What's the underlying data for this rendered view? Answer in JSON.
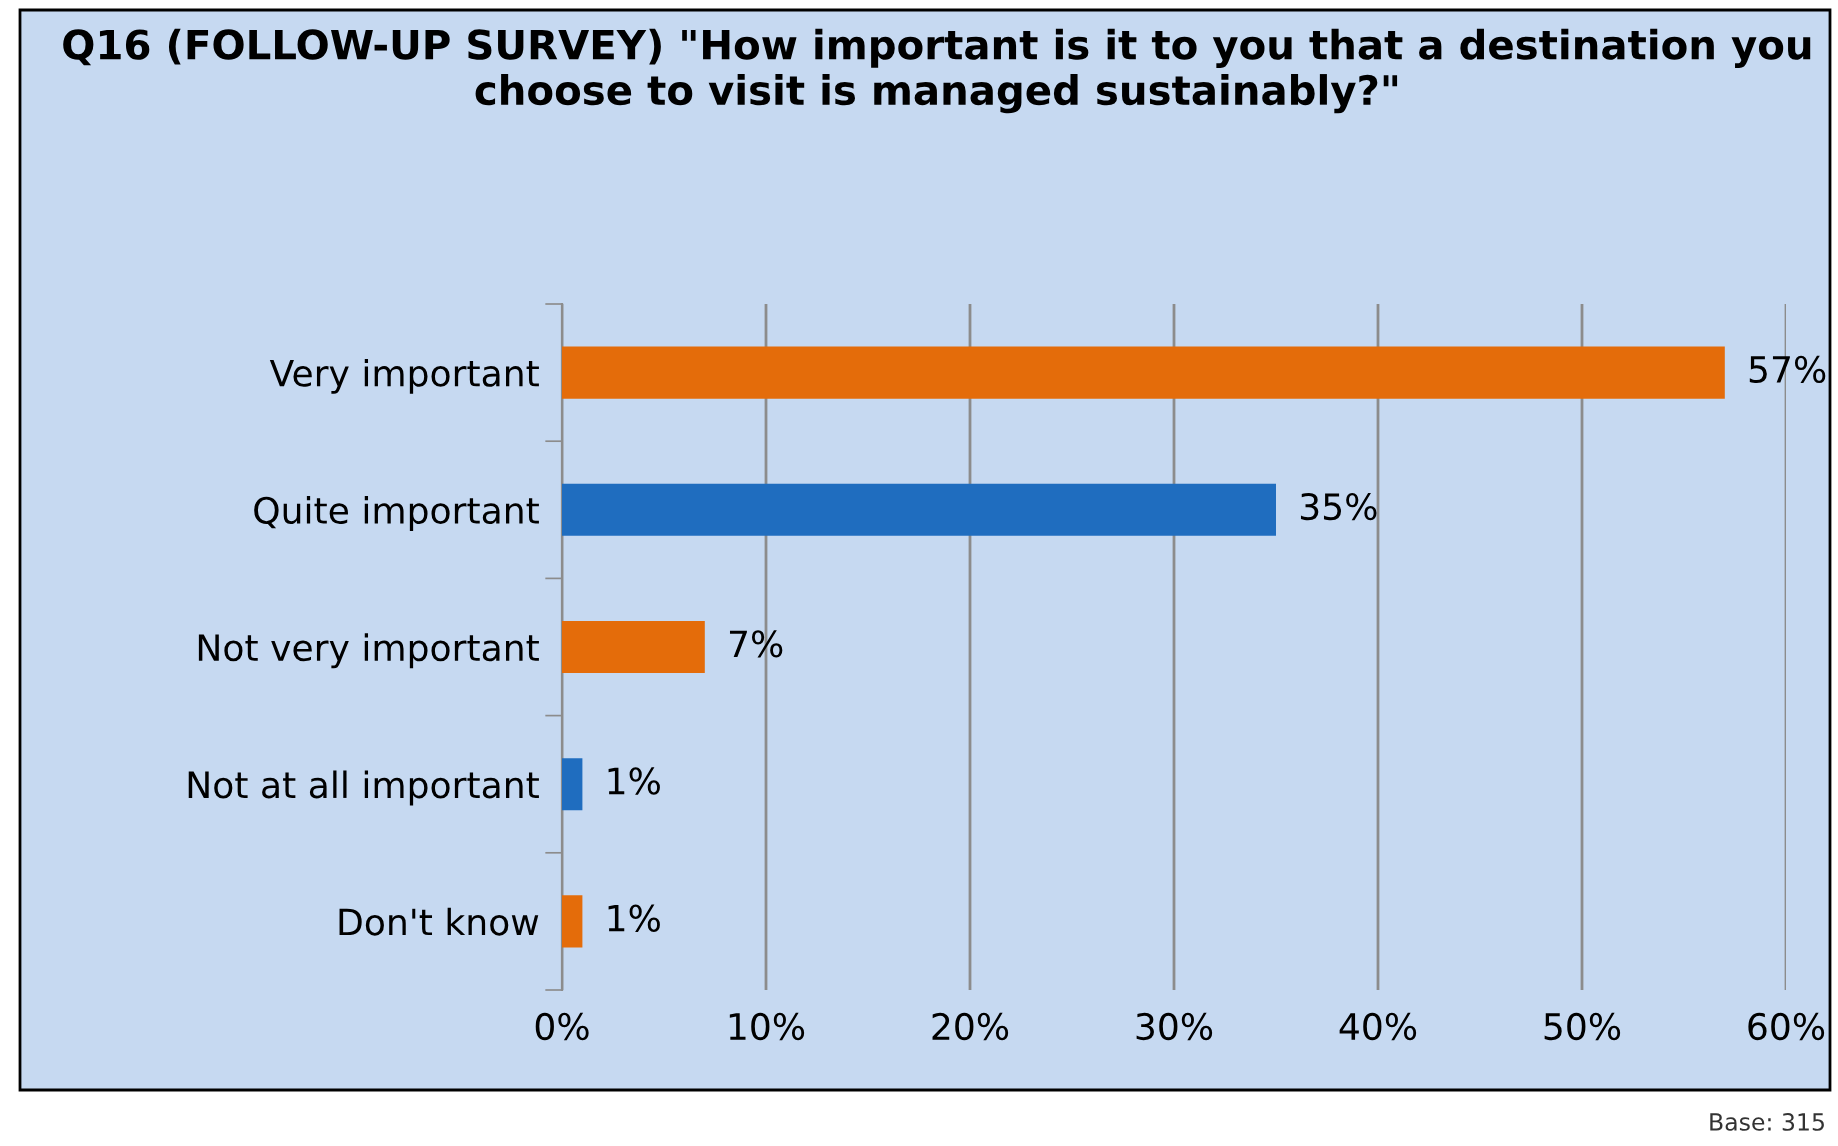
{
  "chart_data": {
    "type": "bar",
    "orientation": "horizontal",
    "title": "Q16 (FOLLOW-UP SURVEY) \"How important is it to you that a destination you choose to visit is managed sustainably?\"",
    "categories": [
      "Very important",
      "Quite important",
      "Not very important",
      "Not at all important",
      "Don't know"
    ],
    "values": [
      57,
      35,
      7,
      1,
      1
    ],
    "colors": [
      "#e46c0a",
      "#1f6dbf",
      "#e46c0a",
      "#1f6dbf",
      "#e46c0a"
    ],
    "value_labels": [
      "57%",
      "35%",
      "7%",
      "1%",
      "1%"
    ],
    "xlim": [
      0,
      60
    ],
    "xticks": [
      {
        "value": 0,
        "label": "0%"
      },
      {
        "value": 10,
        "label": "10%"
      },
      {
        "value": 20,
        "label": "20%"
      },
      {
        "value": 30,
        "label": "30%"
      },
      {
        "value": 40,
        "label": "40%"
      },
      {
        "value": 50,
        "label": "50%"
      },
      {
        "value": 60,
        "label": "60%"
      }
    ],
    "grid": "x",
    "annotations": [
      "Base: 315"
    ]
  }
}
